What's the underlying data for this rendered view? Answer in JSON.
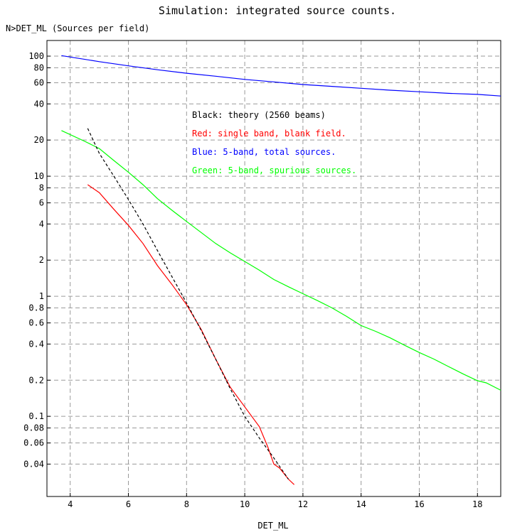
{
  "chart_data": {
    "type": "line",
    "title": "Simulation: integrated source counts.",
    "ylabel": "N>DET_ML  (Sources per field)",
    "xlabel": "DET_ML",
    "x_scale": "linear",
    "y_scale": "log",
    "xlim": [
      3.2,
      18.8
    ],
    "ylim": [
      0.0215,
      135
    ],
    "grid": true,
    "x_ticks": [
      4,
      6,
      8,
      10,
      12,
      14,
      16,
      18
    ],
    "y_ticks": [
      {
        "value": 100,
        "label": "100"
      },
      {
        "value": 80,
        "label": "80"
      },
      {
        "value": 60,
        "label": "60"
      },
      {
        "value": 40,
        "label": "40"
      },
      {
        "value": 20,
        "label": "20"
      },
      {
        "value": 10,
        "label": "10"
      },
      {
        "value": 8,
        "label": "8"
      },
      {
        "value": 6,
        "label": "6"
      },
      {
        "value": 4,
        "label": "4"
      },
      {
        "value": 2,
        "label": "2"
      },
      {
        "value": 1,
        "label": "1"
      },
      {
        "value": 0.8,
        "label": "0.8"
      },
      {
        "value": 0.6,
        "label": "0.6"
      },
      {
        "value": 0.4,
        "label": "0.4"
      },
      {
        "value": 0.2,
        "label": "0.2"
      },
      {
        "value": 0.1,
        "label": "0.1"
      },
      {
        "value": 0.08,
        "label": "0.08"
      },
      {
        "value": 0.06,
        "label": "0.06"
      },
      {
        "value": 0.04,
        "label": "0.04"
      }
    ],
    "legend": [
      {
        "text": "Black: theory (2560 beams)",
        "color": "#000000"
      },
      {
        "text": "Red: single band, blank field.",
        "color": "#ff0000"
      },
      {
        "text": "Blue: 5-band, total sources.",
        "color": "#0000ff"
      },
      {
        "text": "Green: 5-band, spurious sources.",
        "color": "#00ff00"
      }
    ],
    "legend_position": "upper-center",
    "series": [
      {
        "color": "#0000ff",
        "style": "solid",
        "x": [
          3.7,
          5,
          6,
          7,
          8,
          9,
          10,
          11,
          12,
          13,
          14,
          15,
          16,
          17,
          18,
          18.8
        ],
        "y": [
          101,
          90,
          83,
          77,
          72,
          68,
          64,
          61,
          58,
          56,
          54,
          52,
          50.5,
          49,
          48,
          46.5
        ]
      },
      {
        "color": "#00ff00",
        "style": "solid",
        "x": [
          3.7,
          4.5,
          5,
          5.5,
          6,
          6.5,
          7,
          7.5,
          8,
          8.5,
          9,
          9.5,
          10,
          10.5,
          11,
          11.5,
          12,
          12.5,
          13,
          13.5,
          14,
          14.5,
          15,
          15.5,
          16,
          16.5,
          17,
          17.5,
          18,
          18.3,
          18.8
        ],
        "y": [
          24,
          19.5,
          17,
          13.5,
          10.8,
          8.5,
          6.5,
          5.2,
          4.2,
          3.4,
          2.75,
          2.3,
          1.95,
          1.65,
          1.38,
          1.2,
          1.05,
          0.92,
          0.8,
          0.68,
          0.57,
          0.51,
          0.45,
          0.39,
          0.34,
          0.3,
          0.26,
          0.226,
          0.198,
          0.19,
          0.165
        ]
      },
      {
        "color": "#ff0000",
        "style": "solid",
        "x": [
          4.6,
          5,
          5.5,
          6,
          6.5,
          7,
          7.5,
          8,
          8.5,
          9,
          9.5,
          10,
          10.5,
          10.8,
          11,
          11.2,
          11.5,
          11.7
        ],
        "y": [
          8.5,
          7.3,
          5.3,
          3.9,
          2.75,
          1.8,
          1.25,
          0.85,
          0.53,
          0.3,
          0.175,
          0.12,
          0.082,
          0.055,
          0.04,
          0.037,
          0.03,
          0.027
        ]
      },
      {
        "color": "#000000",
        "style": "dashed",
        "x": [
          4.6,
          5,
          5.5,
          6,
          6.5,
          7,
          7.5,
          8,
          8.5,
          9,
          9.5,
          10,
          10.5,
          11,
          11.5
        ],
        "y": [
          25,
          15.5,
          10,
          6.4,
          4,
          2.4,
          1.45,
          0.88,
          0.52,
          0.3,
          0.17,
          0.1,
          0.066,
          0.045,
          0.03
        ]
      }
    ]
  }
}
